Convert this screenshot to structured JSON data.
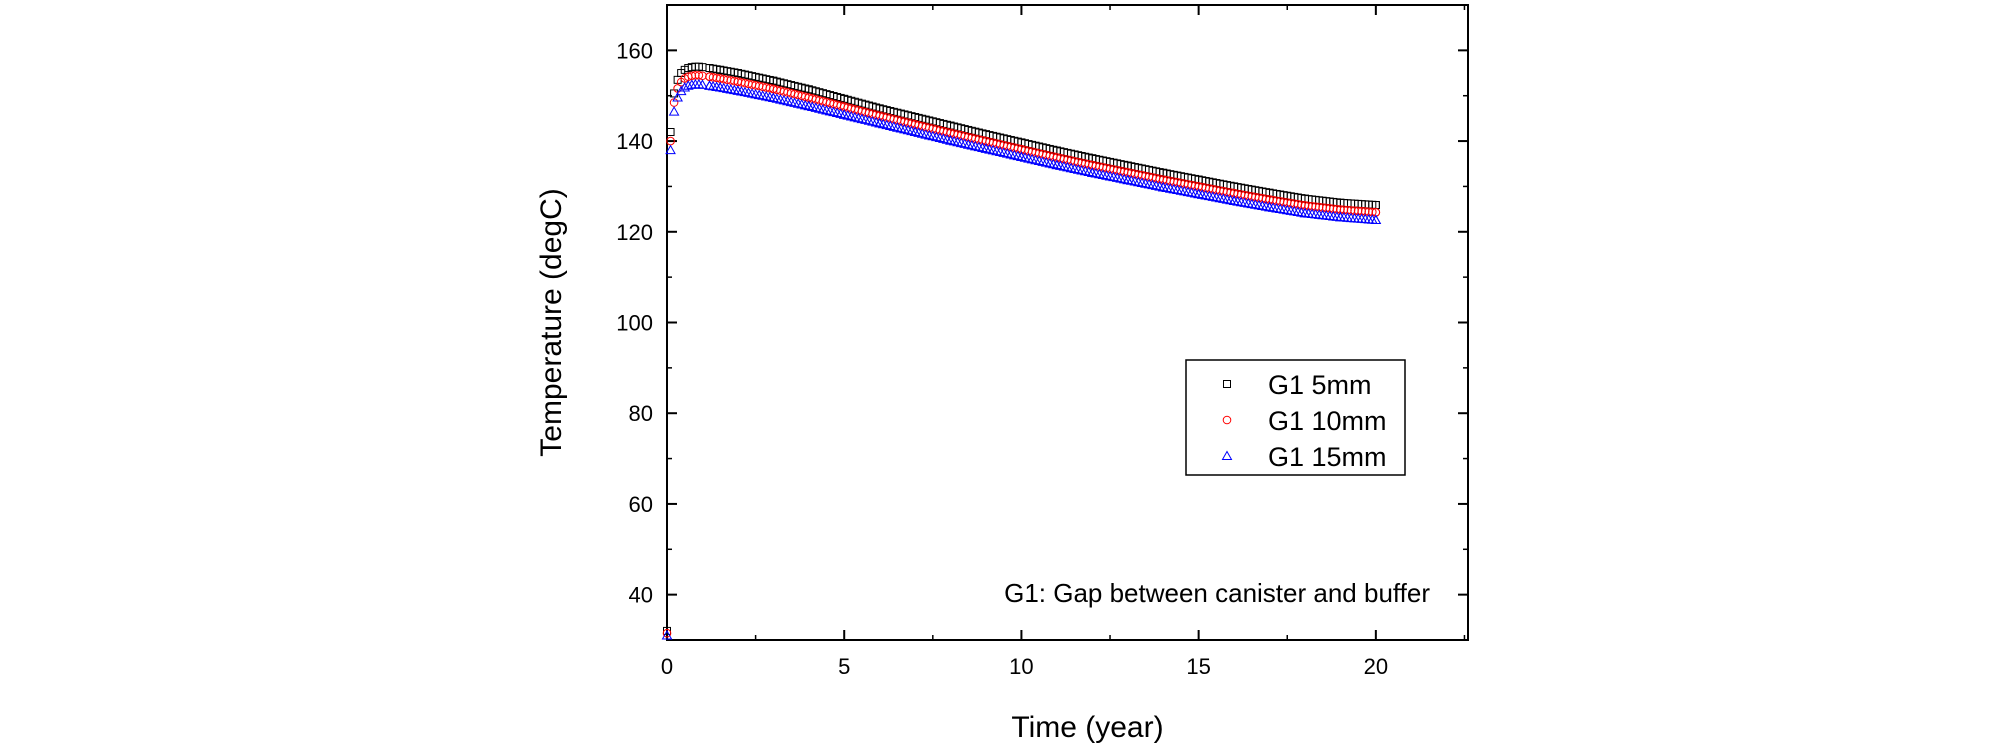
{
  "chart_data": {
    "type": "scatter",
    "xlabel": "Time (year)",
    "ylabel": "Temperature (degC)",
    "xlim": [
      0,
      22.6
    ],
    "ylim": [
      30,
      170
    ],
    "xticks": [
      0,
      5,
      10,
      15,
      20
    ],
    "yticks": [
      40,
      60,
      80,
      100,
      120,
      140,
      160
    ],
    "annotation": "G1: Gap between canister and buffer",
    "legend_position": "center-right",
    "series": [
      {
        "name": "G1 5mm",
        "marker": "square",
        "color": "#000000",
        "x": [
          0,
          0.1,
          0.2,
          0.3,
          0.4,
          0.5,
          0.6,
          0.7,
          0.8,
          0.9,
          1.0,
          1.2,
          1.5,
          2,
          3,
          4,
          5,
          6,
          7,
          8,
          9,
          10,
          11,
          12,
          13,
          14,
          15,
          16,
          17,
          18,
          19,
          20
        ],
        "y": [
          32,
          142,
          150.5,
          153.5,
          155,
          155.7,
          156.1,
          156.3,
          156.4,
          156.4,
          156.3,
          156.1,
          155.7,
          155,
          153.3,
          151.4,
          149.3,
          147.2,
          145.3,
          143.4,
          141.5,
          139.7,
          137.9,
          136.2,
          134.6,
          133,
          131.5,
          130,
          128.6,
          127.3,
          126.4,
          125.9
        ]
      },
      {
        "name": "G1 10mm",
        "marker": "circle",
        "color": "#ff0000",
        "x": [
          0,
          0.1,
          0.2,
          0.3,
          0.4,
          0.5,
          0.6,
          0.7,
          0.8,
          0.9,
          1.0,
          1.2,
          1.5,
          2,
          3,
          4,
          5,
          6,
          7,
          8,
          9,
          10,
          11,
          12,
          13,
          14,
          15,
          16,
          17,
          18,
          19,
          20
        ],
        "y": [
          31.5,
          140,
          148.5,
          151.6,
          153,
          153.8,
          154.2,
          154.4,
          154.5,
          154.5,
          154.4,
          154.2,
          153.8,
          153.1,
          151.5,
          149.6,
          147.6,
          145.6,
          143.7,
          141.8,
          140,
          138.2,
          136.4,
          134.7,
          133.1,
          131.5,
          130,
          128.5,
          127.1,
          125.8,
          124.9,
          124.3
        ]
      },
      {
        "name": "G1 15mm",
        "marker": "triangle",
        "color": "#0000ff",
        "x": [
          0,
          0.1,
          0.2,
          0.3,
          0.4,
          0.5,
          0.6,
          0.7,
          0.8,
          0.9,
          1.0,
          1.2,
          1.5,
          2,
          3,
          4,
          5,
          6,
          7,
          8,
          9,
          10,
          11,
          12,
          13,
          14,
          15,
          16,
          17,
          18,
          19,
          20
        ],
        "y": [
          31,
          138,
          146.5,
          149.6,
          151,
          151.8,
          152.2,
          152.4,
          152.5,
          152.5,
          152.4,
          152.2,
          151.8,
          151.1,
          149.5,
          147.7,
          145.8,
          143.9,
          142,
          140.1,
          138.3,
          136.5,
          134.7,
          133,
          131.4,
          129.8,
          128.3,
          126.8,
          125.4,
          124.1,
          123.2,
          122.6
        ]
      }
    ]
  }
}
